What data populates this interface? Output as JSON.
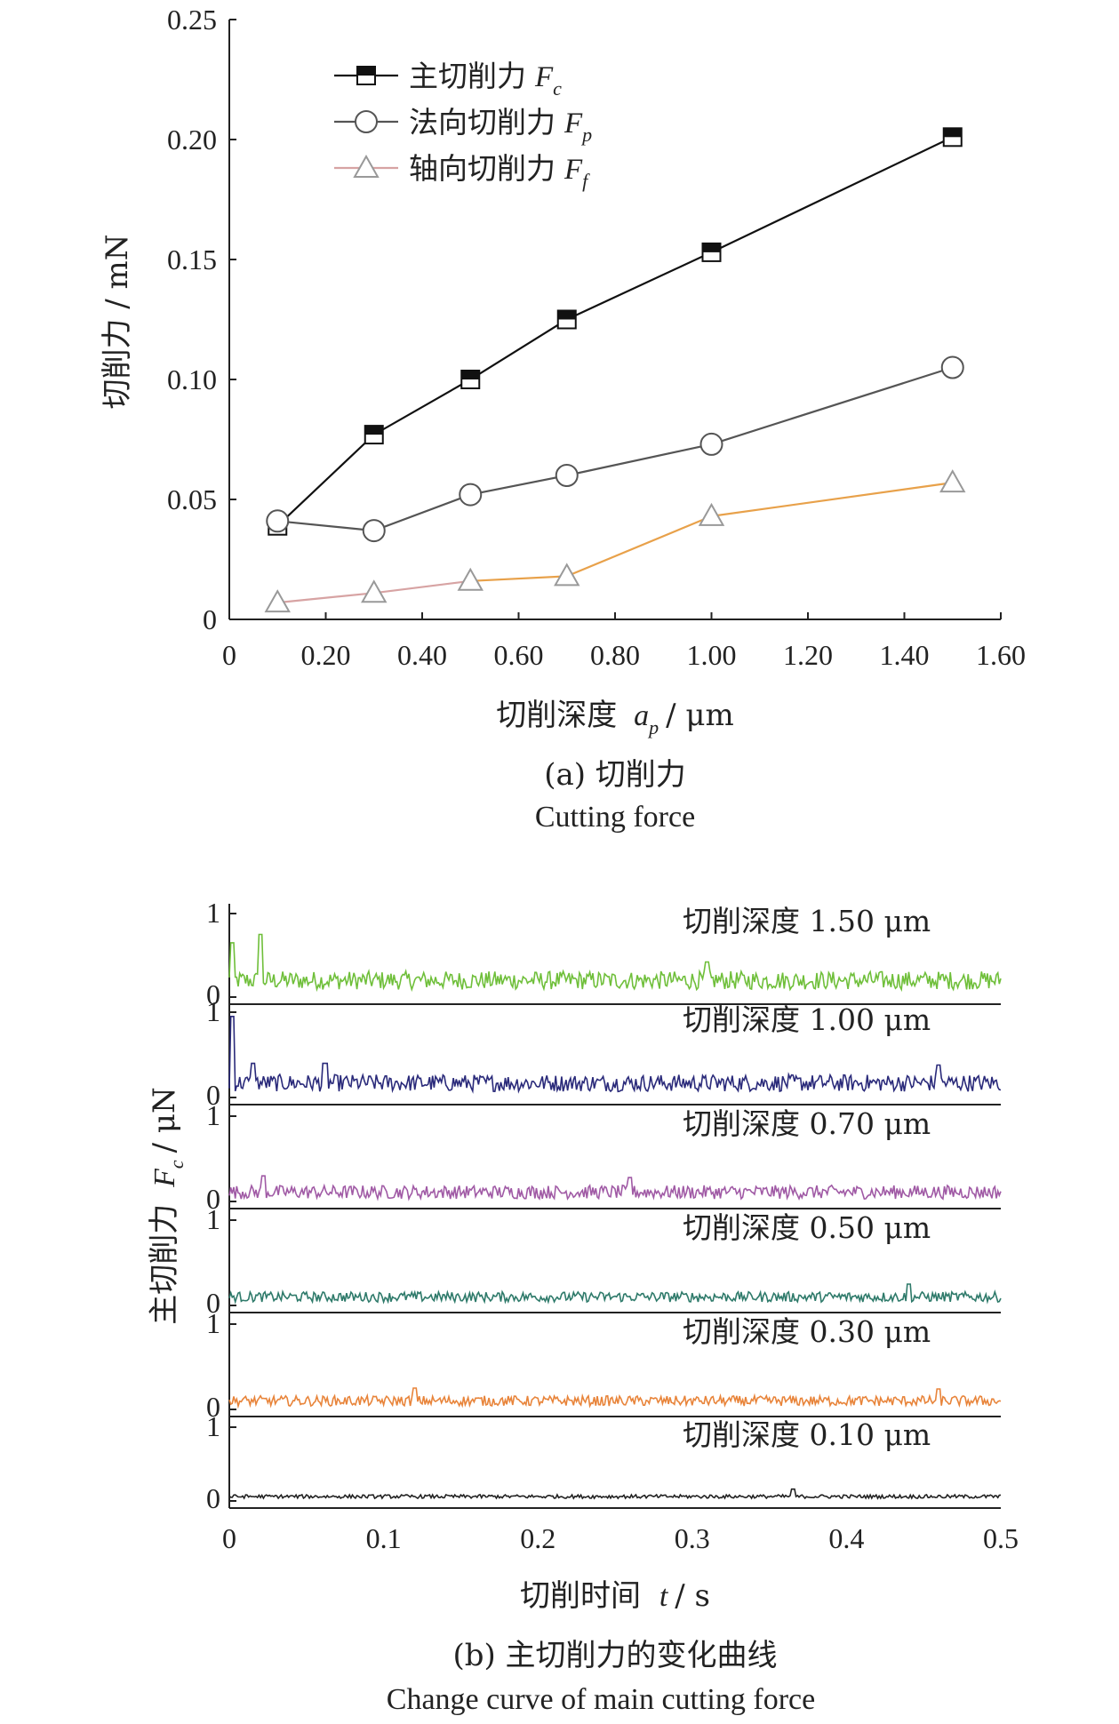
{
  "chart_data": [
    {
      "type": "line",
      "xlabel_prefix": "切削深度",
      "xlabel_var": "a",
      "xlabel_sub": "p",
      "xlabel_unit": "/ μm",
      "ylabel": "切削力 / mN",
      "xlim": [
        0,
        1.6
      ],
      "ylim": [
        0,
        0.25
      ],
      "x_ticks": [
        "0",
        "0.20",
        "0.40",
        "0.60",
        "0.80",
        "1.00",
        "1.20",
        "1.40",
        "1.60"
      ],
      "y_ticks": [
        "0",
        "0.05",
        "0.10",
        "0.15",
        "0.20",
        "0.25"
      ],
      "x": [
        0.1,
        0.3,
        0.5,
        0.7,
        1.0,
        1.5
      ],
      "legend_position": "top-left",
      "series": [
        {
          "name_text": "主切削力",
          "name_var": "F",
          "name_sub": "c",
          "marker": "square",
          "color": "#111111",
          "values": [
            0.039,
            0.077,
            0.1,
            0.125,
            0.153,
            0.201
          ]
        },
        {
          "name_text": "法向切削力",
          "name_var": "F",
          "name_sub": "p",
          "marker": "circle",
          "color": "#555555",
          "values": [
            0.041,
            0.037,
            0.052,
            0.06,
            0.073,
            0.105
          ]
        },
        {
          "name_text": "轴向切削力",
          "name_var": "F",
          "name_sub": "f",
          "marker": "triangle",
          "color": "#e3a98a",
          "values": [
            0.007,
            0.011,
            0.016,
            0.018,
            0.043,
            0.057
          ]
        }
      ],
      "caption_cn": "(a) 切削力",
      "caption_en": "Cutting force"
    },
    {
      "type": "line",
      "xlabel_prefix": "切削时间",
      "xlabel_var": "t",
      "xlabel_unit": "/ s",
      "ylabel_prefix": "主切削力",
      "ylabel_var": "F",
      "ylabel_sub": "c",
      "ylabel_unit": "/ μN",
      "xlim": [
        0,
        0.5
      ],
      "x_ticks": [
        "0",
        "0.1",
        "0.2",
        "0.3",
        "0.4",
        "0.5"
      ],
      "panel_ylim": [
        0,
        1
      ],
      "panel_y_ticks": [
        "0",
        "1"
      ],
      "panels": [
        {
          "label": "切削深度 1.50 μm",
          "color": "#6fbf3a",
          "mean": 0.2,
          "amp": 0.11,
          "spikes": [
            [
              0.002,
              0.65
            ],
            [
              0.02,
              0.75
            ],
            [
              0.31,
              0.42
            ]
          ]
        },
        {
          "label": "切削深度 1.00 μm",
          "color": "#2a2a7a",
          "mean": 0.17,
          "amp": 0.1,
          "spikes": [
            [
              0.002,
              0.95
            ],
            [
              0.015,
              0.4
            ],
            [
              0.062,
              0.4
            ],
            [
              0.46,
              0.38
            ]
          ]
        },
        {
          "label": "切削深度 0.70 μm",
          "color": "#a05aa5",
          "mean": 0.11,
          "amp": 0.08,
          "spikes": [
            [
              0.022,
              0.3
            ],
            [
              0.26,
              0.28
            ]
          ]
        },
        {
          "label": "切削深度 0.50 μm",
          "color": "#2e7a6a",
          "mean": 0.1,
          "amp": 0.06,
          "spikes": [
            [
              0.44,
              0.25
            ]
          ]
        },
        {
          "label": "切削深度 0.30 μm",
          "color": "#e8843a",
          "mean": 0.1,
          "amp": 0.06,
          "spikes": [
            [
              0.12,
              0.25
            ],
            [
              0.46,
              0.24
            ]
          ]
        },
        {
          "label": "切削深度 0.10 μm",
          "color": "#222222",
          "mean": 0.06,
          "amp": 0.025,
          "spikes": [
            [
              0.365,
              0.16
            ]
          ]
        }
      ],
      "caption_cn": "(b) 主切削力的变化曲线",
      "caption_en": "Change curve of main cutting force"
    }
  ]
}
